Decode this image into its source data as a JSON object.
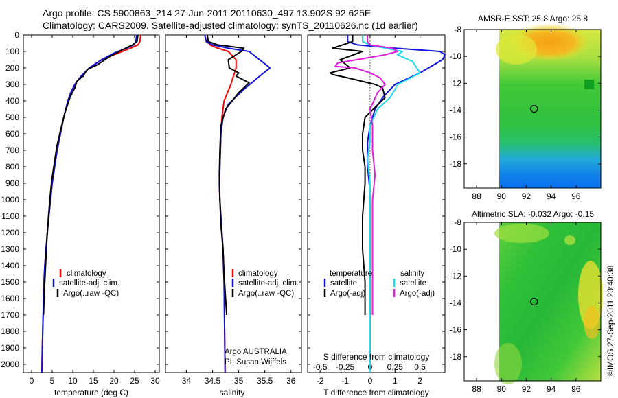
{
  "header": {
    "line1": "Argo profile: CS 5900863_214 27-Jun-2011 20110630_497 13.902S 92.625E",
    "line2": "Climatology: CARS2009. Satellite-adjusted climatology: synTS_20110626.nc (1d earlier)"
  },
  "side_note": "©IMOS 27-Sep-2011 20:40:38",
  "colors": {
    "climatology": "#ff0000",
    "satellite": "#1010e0",
    "argo": "#000000",
    "s_satellite": "#20d8f0",
    "s_argo": "#e020e0"
  },
  "depth_axis": {
    "range": [
      0,
      2050
    ],
    "ticks": [
      0,
      100,
      200,
      300,
      400,
      500,
      600,
      700,
      800,
      900,
      1000,
      1100,
      1200,
      1300,
      1400,
      1500,
      1600,
      1700,
      1800,
      1900,
      2000
    ]
  },
  "panels": {
    "temperature": {
      "xlabel": "temperature (deg C)",
      "xlim": [
        -2,
        31
      ],
      "xticks": [
        0,
        5,
        10,
        15,
        20,
        25,
        30
      ],
      "legend": [
        "climatology",
        "satellite-adj. clim.",
        "Argo(..raw -QC)"
      ]
    },
    "salinity": {
      "xlabel": "salinity",
      "xlim": [
        33.6,
        36.2
      ],
      "xticks": [
        34,
        34.5,
        35,
        35.5,
        36
      ],
      "legend": [
        "climatology",
        "satellite-adj. clim.",
        "Argo(..raw -QC)"
      ],
      "note_line1": "Argo AUSTRALIA",
      "note_line2": "PI: Susan Wijffels"
    },
    "difference": {
      "xlabel": "T difference from climatology",
      "xlim": [
        -2.5,
        3
      ],
      "xticks": [
        -2,
        -1,
        0,
        1,
        2
      ],
      "s_label": "S difference from climatology",
      "s_ticks": [
        "-0.5",
        "-0.25",
        "0",
        "0.25",
        "0.5"
      ],
      "s_tick_positions": [
        -2,
        -1,
        0,
        1,
        2
      ],
      "legend_t_title": "temperature",
      "legend_t": [
        "satellite",
        "Argo(-adj)"
      ],
      "legend_s_title": "salinity",
      "legend_s": [
        "satellite",
        "Argo(-adj)"
      ]
    }
  },
  "maps": [
    {
      "title": "AMSR-E SST: 25.8 Argo: 25.8",
      "xticks": [
        88,
        90,
        92,
        94,
        96
      ],
      "yticks": [
        -8,
        -10,
        -12,
        -14,
        -16,
        -18
      ],
      "xlim": [
        87,
        98
      ],
      "ylim": [
        -19.8,
        -8
      ],
      "profile": {
        "lon": 92.625,
        "lat": -13.902
      }
    },
    {
      "title": "Altimetric SLA: -0.032 Argo: -0.15",
      "xticks": [
        88,
        90,
        92,
        94,
        96
      ],
      "yticks": [
        -8,
        -10,
        -12,
        -14,
        -16,
        -18
      ],
      "xlim": [
        87,
        98
      ],
      "ylim": [
        -19.8,
        -8
      ],
      "profile": {
        "lon": 92.625,
        "lat": -13.902
      }
    }
  ],
  "chart_data": [
    {
      "type": "line",
      "title": "",
      "xlabel": "temperature (deg C)",
      "ylabel": "",
      "xlim": [
        -2,
        31
      ],
      "ylim": [
        2050,
        0
      ],
      "series": [
        {
          "name": "climatology",
          "x": [
            26.5,
            26.3,
            25.8,
            24,
            21,
            17,
            14,
            12,
            10.5,
            9.5,
            8.8,
            7.8,
            7,
            6.2,
            5.6,
            5,
            4.6,
            4.2,
            3.8,
            3.5,
            3.2,
            3,
            2.8,
            2.6,
            2.5
          ],
          "y": [
            0,
            40,
            60,
            80,
            110,
            150,
            200,
            250,
            300,
            350,
            400,
            500,
            600,
            700,
            800,
            900,
            1000,
            1100,
            1200,
            1300,
            1400,
            1500,
            1700,
            1900,
            2050
          ]
        },
        {
          "name": "satellite-adj. clim.",
          "x": [
            25.5,
            25.3,
            24.8,
            23,
            20,
            17,
            14,
            12,
            10.5,
            9.5,
            8.8,
            7.8,
            7,
            6.2,
            5.6,
            5,
            4.6,
            4.2,
            3.8,
            3.5,
            3.2,
            3,
            2.8,
            2.6,
            2.5
          ],
          "y": [
            0,
            40,
            60,
            80,
            110,
            150,
            200,
            250,
            300,
            350,
            400,
            500,
            600,
            700,
            800,
            900,
            1000,
            1100,
            1200,
            1300,
            1400,
            1500,
            1700,
            1900,
            2050
          ]
        },
        {
          "name": "Argo(..raw -QC)",
          "x": [
            25.8,
            25.6,
            24.5,
            22,
            19,
            16,
            13.5,
            12.5,
            11,
            10.5,
            9.3,
            8,
            7,
            6.1,
            5.5,
            4.9,
            4.5,
            4.1,
            3.7,
            3.4,
            3.1,
            2.9
          ],
          "y": [
            0,
            40,
            60,
            90,
            130,
            180,
            210,
            250,
            280,
            320,
            380,
            480,
            580,
            680,
            780,
            880,
            980,
            1100,
            1250,
            1400,
            1550,
            1700
          ]
        }
      ]
    },
    {
      "type": "line",
      "title": "",
      "xlabel": "salinity",
      "ylabel": "",
      "xlim": [
        33.6,
        36.2
      ],
      "ylim": [
        2050,
        0
      ],
      "series": [
        {
          "name": "climatology",
          "x": [
            34.4,
            34.4,
            34.45,
            34.6,
            34.8,
            34.95,
            34.95,
            34.85,
            34.72,
            34.68,
            34.66,
            34.65,
            34.64,
            34.63,
            34.64,
            34.66,
            34.68,
            34.7,
            34.71,
            34.72,
            34.73,
            34.74
          ],
          "y": [
            0,
            40,
            60,
            80,
            100,
            150,
            200,
            300,
            400,
            500,
            600,
            700,
            800,
            900,
            1000,
            1100,
            1200,
            1300,
            1400,
            1500,
            1800,
            2050
          ]
        },
        {
          "name": "satellite-adj. clim.",
          "x": [
            34.35,
            34.38,
            34.5,
            34.8,
            35.2,
            35.6,
            35.4,
            35.1,
            34.8,
            34.7,
            34.66,
            34.65,
            34.64,
            34.63,
            34.64,
            34.66,
            34.68,
            34.7,
            34.71,
            34.72,
            34.73,
            34.74
          ],
          "y": [
            0,
            40,
            60,
            80,
            100,
            200,
            250,
            330,
            420,
            500,
            600,
            700,
            800,
            900,
            1000,
            1100,
            1200,
            1300,
            1400,
            1500,
            1800,
            2050
          ]
        },
        {
          "name": "Argo(..raw -QC)",
          "x": [
            34.4,
            34.42,
            34.6,
            35.1,
            35.05,
            34.8,
            34.82,
            35.0,
            34.95,
            35.2,
            35.0,
            34.75,
            34.66,
            34.64,
            34.63,
            34.64,
            34.66,
            34.7,
            34.72,
            34.74,
            34.76,
            34.77
          ],
          "y": [
            0,
            40,
            60,
            80,
            100,
            150,
            200,
            230,
            250,
            290,
            350,
            450,
            550,
            700,
            850,
            1000,
            1150,
            1300,
            1450,
            1550,
            1650,
            1700
          ]
        }
      ]
    },
    {
      "type": "line",
      "title": "",
      "xlabel": "T difference from climatology",
      "ylabel": "",
      "xlim": [
        -2.5,
        3
      ],
      "ylim": [
        2050,
        0
      ],
      "series": [
        {
          "name": "temperature satellite",
          "x": [
            -0.9,
            -0.9,
            -0.5,
            1,
            2.8,
            3,
            2.9,
            2,
            1,
            0.5,
            0.2,
            0,
            -0.1,
            -0.1,
            0,
            0,
            0,
            0,
            0,
            0,
            0,
            0
          ],
          "y": [
            0,
            40,
            60,
            80,
            100,
            120,
            150,
            230,
            300,
            380,
            450,
            550,
            650,
            800,
            950,
            1100,
            1250,
            1400,
            1550,
            1700,
            1900,
            2050
          ]
        },
        {
          "name": "temperature Argo(-adj)",
          "x": [
            -0.7,
            -0.7,
            -1.5,
            -0.3,
            -1.2,
            -0.8,
            -1.6,
            -1.5,
            -0.9,
            0.2,
            0.5,
            0.6,
            0.2,
            -0.2,
            -0.3,
            -0.3,
            -0.2,
            -0.2,
            -0.3,
            -0.3,
            -0.2,
            -0.2
          ],
          "y": [
            0,
            40,
            80,
            100,
            150,
            200,
            230,
            240,
            260,
            300,
            320,
            380,
            440,
            500,
            600,
            700,
            800,
            900,
            1100,
            1300,
            1500,
            1700
          ]
        },
        {
          "name": "salinity satellite",
          "x": [
            -0.3,
            -0.3,
            0,
            0.6,
            1.3,
            1.1,
            1.7,
            2,
            1.5,
            1.1,
            1,
            0.8,
            0.3,
            0,
            0,
            -0.1,
            0,
            0,
            0,
            0,
            0,
            0
          ],
          "y": [
            0,
            40,
            60,
            80,
            100,
            120,
            160,
            230,
            270,
            300,
            330,
            380,
            450,
            550,
            650,
            750,
            900,
            1100,
            1300,
            1500,
            1800,
            2050
          ]
        },
        {
          "name": "salinity Argo(-adj)",
          "x": [
            -0.1,
            -0.1,
            0,
            0.9,
            1.1,
            0.6,
            -1.3,
            -1.4,
            -0.6,
            0,
            0.4,
            0.6,
            0.3,
            0,
            0.1,
            0.1,
            0.2,
            0.1,
            0.1,
            0.1,
            0.1,
            0.1
          ],
          "y": [
            0,
            40,
            60,
            80,
            100,
            120,
            170,
            190,
            200,
            230,
            260,
            300,
            350,
            450,
            550,
            700,
            850,
            1000,
            1200,
            1400,
            1550,
            1700
          ]
        }
      ]
    }
  ]
}
